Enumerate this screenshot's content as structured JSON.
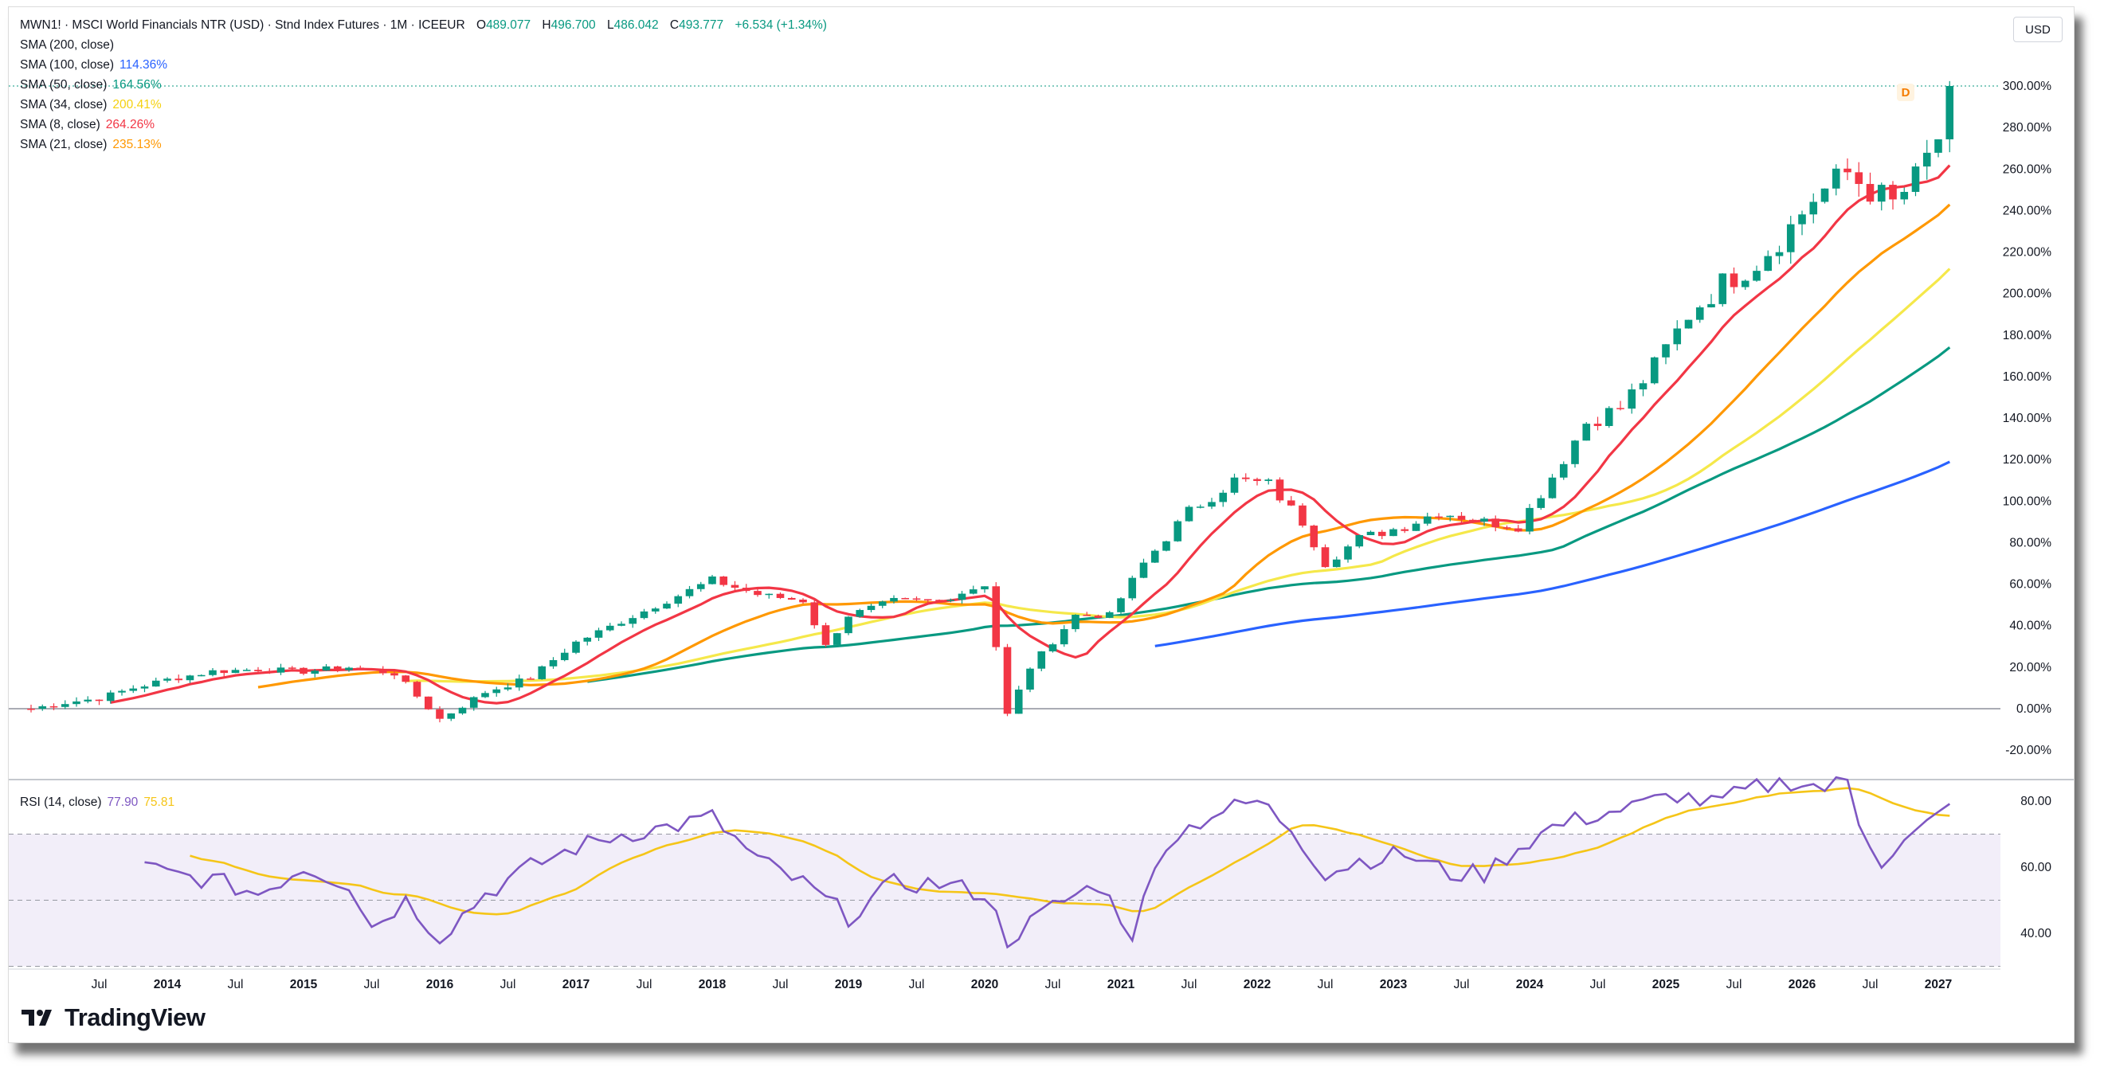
{
  "header": {
    "symbol": "MWN1! · MSCI World Financials NTR (USD) · Stnd Index Futures · 1M · ICEEUR",
    "ohlc": [
      {
        "k": "O",
        "v": "489.077"
      },
      {
        "k": "H",
        "v": "496.700"
      },
      {
        "k": "L",
        "v": "486.042"
      },
      {
        "k": "C",
        "v": "493.777"
      }
    ],
    "change": "+6.534 (+1.34%)"
  },
  "indicators": [
    {
      "label": "SMA (200, close)",
      "value": "",
      "color": "#2962ff"
    },
    {
      "label": "SMA (100, close)",
      "value": "114.36%",
      "color": "#2962ff"
    },
    {
      "label": "SMA (50, close)",
      "value": "164.56%",
      "color": "#089981"
    },
    {
      "label": "SMA (34, close)",
      "value": "200.41%",
      "color": "#f5d10f"
    },
    {
      "label": "SMA (8, close)",
      "value": "264.26%",
      "color": "#f23645"
    },
    {
      "label": "SMA (21, close)",
      "value": "235.13%",
      "color": "#ff9800"
    }
  ],
  "unit_label": "USD",
  "last_marker": "D",
  "rsi": {
    "label": "RSI (14, close)",
    "value": "77.90",
    "ma_value": "75.81",
    "line_color": "#7e57c2",
    "ma_color": "#f5c518"
  },
  "brand": "TradingView",
  "colors": {
    "up": "#089981",
    "down": "#f23645",
    "sma8": "#f23645",
    "sma21": "#ff9800",
    "sma34": "#f5e84a",
    "sma50": "#089981",
    "sma100": "#2962ff"
  },
  "chart_data": {
    "type": "candlestick",
    "y_unit": "%",
    "ylim": [
      -28,
      308
    ],
    "y_ticks": [
      "300.00%",
      "280.00%",
      "260.00%",
      "240.00%",
      "220.00%",
      "200.00%",
      "180.00%",
      "160.00%",
      "140.00%",
      "120.00%",
      "100.00%",
      "80.00%",
      "60.00%",
      "40.00%",
      "20.00%",
      "0.00%",
      "-20.00%"
    ],
    "x_ticks": [
      "Jul",
      "2014",
      "Jul",
      "2015",
      "Jul",
      "2016",
      "Jul",
      "2017",
      "Jul",
      "2018",
      "Jul",
      "2019",
      "Jul",
      "2020",
      "Jul",
      "2021",
      "Jul",
      "2022",
      "Jul",
      "2023",
      "Jul",
      "2024",
      "Jul",
      "2025",
      "Jul",
      "2026",
      "Jul",
      "2027"
    ],
    "start_month": "2013-01",
    "close_anchors": [
      [
        0,
        0
      ],
      [
        3,
        3
      ],
      [
        6,
        5
      ],
      [
        9,
        10
      ],
      [
        12,
        14
      ],
      [
        16,
        18
      ],
      [
        20,
        19
      ],
      [
        24,
        18
      ],
      [
        28,
        20
      ],
      [
        32,
        17
      ],
      [
        36,
        -5
      ],
      [
        40,
        8
      ],
      [
        44,
        15
      ],
      [
        48,
        32
      ],
      [
        52,
        42
      ],
      [
        56,
        52
      ],
      [
        60,
        62
      ],
      [
        64,
        55
      ],
      [
        68,
        52
      ],
      [
        70,
        30
      ],
      [
        72,
        45
      ],
      [
        76,
        52
      ],
      [
        80,
        52
      ],
      [
        84,
        60
      ],
      [
        85,
        30
      ],
      [
        86,
        -3
      ],
      [
        88,
        20
      ],
      [
        92,
        45
      ],
      [
        95,
        45
      ],
      [
        98,
        70
      ],
      [
        102,
        95
      ],
      [
        106,
        110
      ],
      [
        109,
        108
      ],
      [
        112,
        90
      ],
      [
        114,
        70
      ],
      [
        117,
        82
      ],
      [
        121,
        88
      ],
      [
        124,
        95
      ],
      [
        128,
        90
      ],
      [
        131,
        88
      ],
      [
        134,
        112
      ],
      [
        137,
        138
      ],
      [
        140,
        145
      ],
      [
        143,
        165
      ],
      [
        146,
        190
      ],
      [
        149,
        205
      ],
      [
        152,
        215
      ],
      [
        155,
        232
      ],
      [
        157,
        246
      ],
      [
        160,
        258
      ],
      [
        162,
        250
      ],
      [
        164,
        243
      ],
      [
        166,
        255
      ],
      [
        168,
        275
      ],
      [
        169,
        300
      ]
    ],
    "rsi_ylim": [
      20,
      90
    ],
    "rsi_ticks": [
      "80.00",
      "60.00",
      "40.00"
    ],
    "rsi_bands": [
      30,
      50,
      70
    ],
    "rsi_anchors": [
      [
        0,
        66
      ],
      [
        4,
        68
      ],
      [
        8,
        62
      ],
      [
        12,
        58
      ],
      [
        16,
        56
      ],
      [
        20,
        52
      ],
      [
        24,
        60
      ],
      [
        28,
        55
      ],
      [
        30,
        42
      ],
      [
        33,
        50
      ],
      [
        36,
        39
      ],
      [
        40,
        52
      ],
      [
        44,
        60
      ],
      [
        48,
        66
      ],
      [
        52,
        70
      ],
      [
        56,
        72
      ],
      [
        60,
        75
      ],
      [
        64,
        62
      ],
      [
        68,
        55
      ],
      [
        72,
        45
      ],
      [
        76,
        55
      ],
      [
        80,
        55
      ],
      [
        84,
        52
      ],
      [
        86,
        38
      ],
      [
        90,
        48
      ],
      [
        94,
        55
      ],
      [
        97,
        40
      ],
      [
        100,
        68
      ],
      [
        104,
        76
      ],
      [
        108,
        80
      ],
      [
        111,
        72
      ],
      [
        114,
        58
      ],
      [
        117,
        62
      ],
      [
        121,
        64
      ],
      [
        125,
        58
      ],
      [
        128,
        58
      ],
      [
        131,
        66
      ],
      [
        134,
        72
      ],
      [
        138,
        76
      ],
      [
        141,
        78
      ],
      [
        145,
        82
      ],
      [
        148,
        79
      ],
      [
        152,
        84
      ],
      [
        155,
        86
      ],
      [
        158,
        84
      ],
      [
        160,
        86
      ],
      [
        161,
        74
      ],
      [
        163,
        62
      ],
      [
        166,
        70
      ],
      [
        169,
        78
      ]
    ],
    "rsi_ma_window": 14
  }
}
